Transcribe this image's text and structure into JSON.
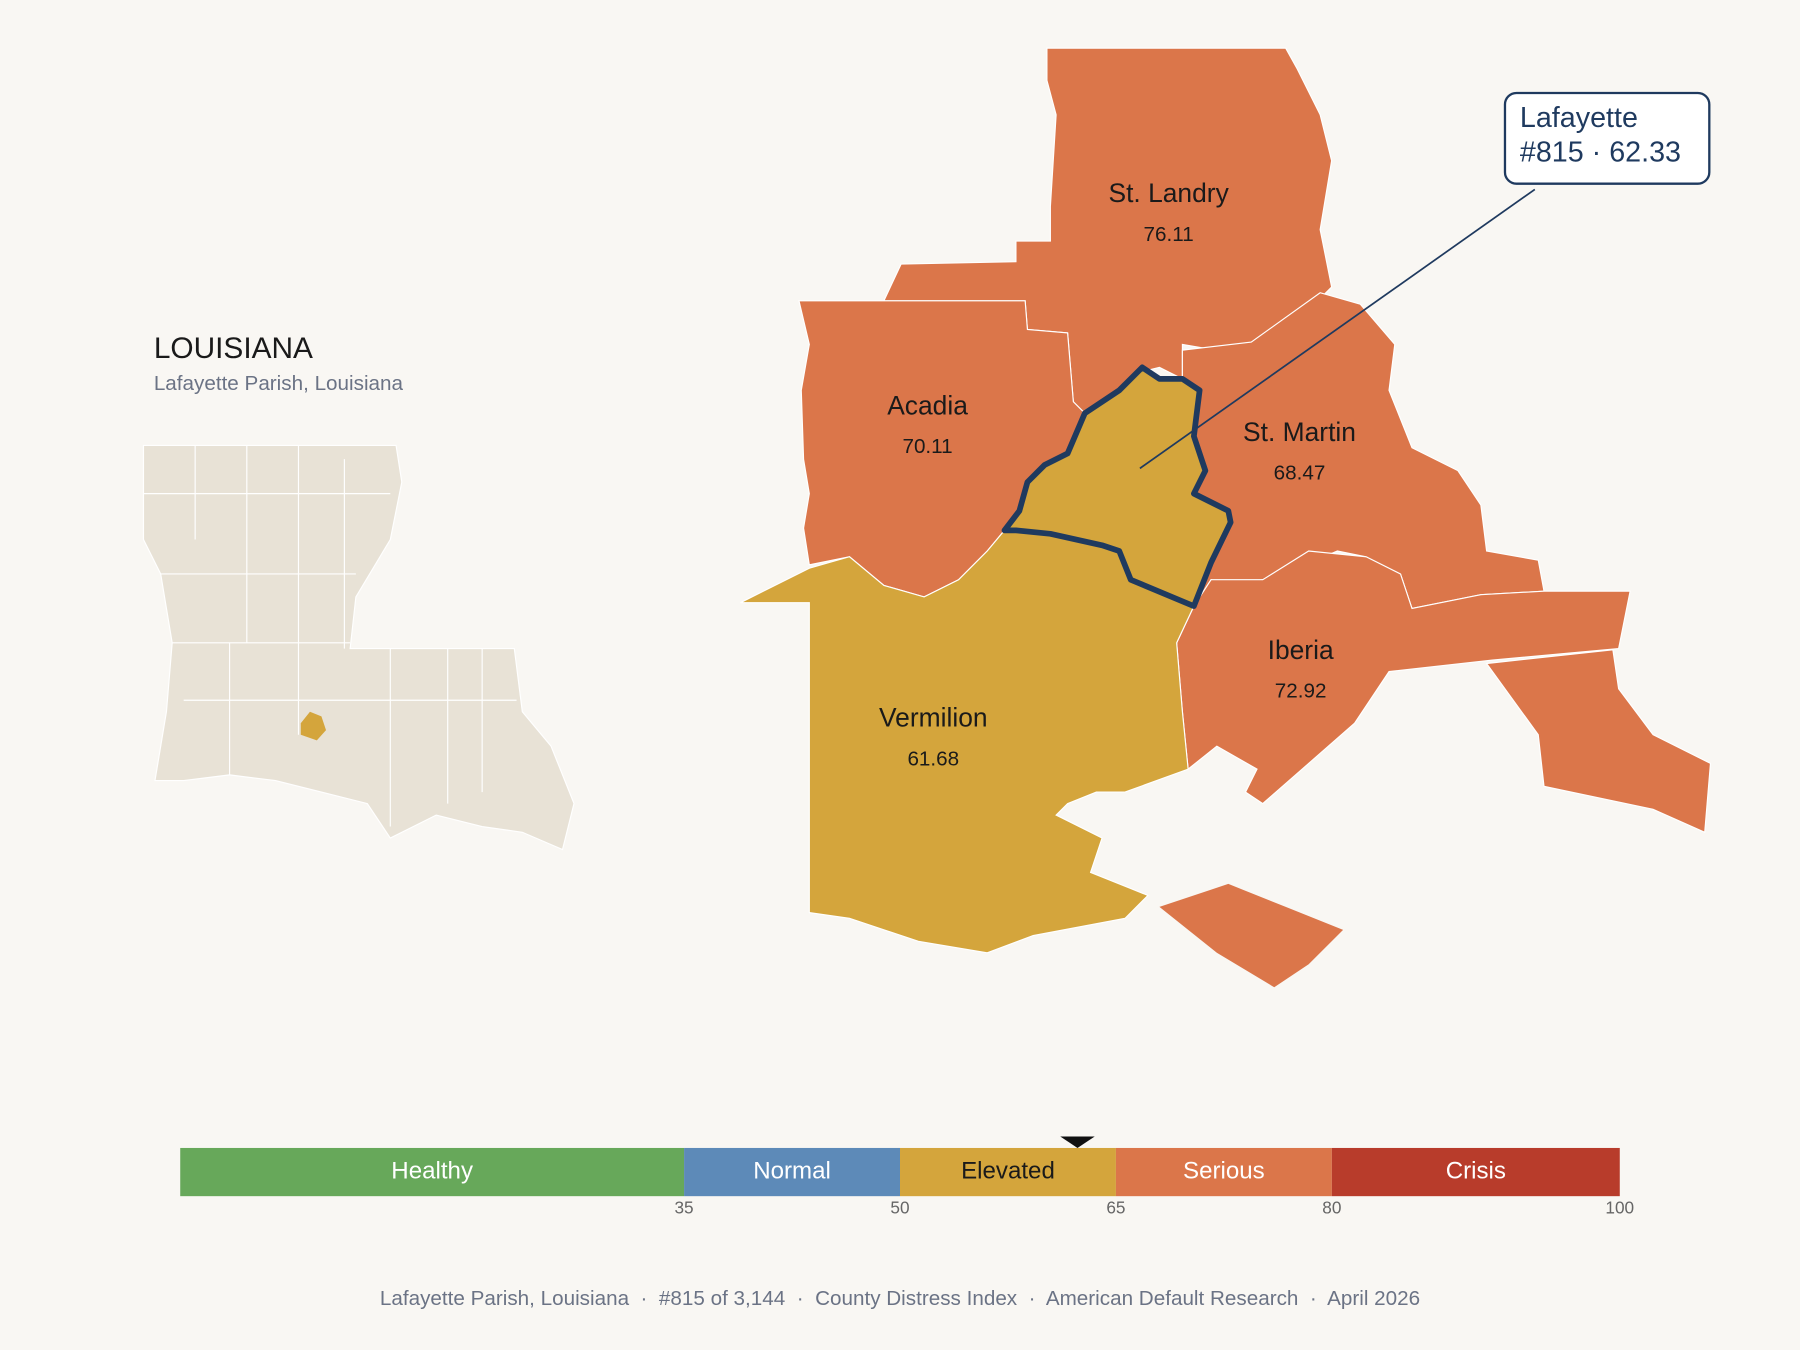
{
  "header": {
    "title": "LOUISIANA",
    "subtitle": "Lafayette Parish, Louisiana"
  },
  "parishes": [
    {
      "name": "St. Landry",
      "value": 76.11
    },
    {
      "name": "Acadia",
      "value": 70.11
    },
    {
      "name": "St. Martin",
      "value": 68.47
    },
    {
      "name": "Iberia",
      "value": 72.92
    },
    {
      "name": "Vermilion",
      "value": 61.68
    }
  ],
  "callout": {
    "name": "Lafayette",
    "detail": "#815 · 62.33"
  },
  "scale": {
    "range": [
      0,
      100
    ],
    "ticks": [
      35,
      50,
      65,
      80,
      100
    ],
    "bands": [
      {
        "label": "Healthy",
        "color": "#67a85a"
      },
      {
        "label": "Normal",
        "color": "#5d8ab8"
      },
      {
        "label": "Elevated",
        "color": "#d4a53c"
      },
      {
        "label": "Serious",
        "color": "#db764a"
      },
      {
        "label": "Crisis",
        "color": "#b83c2b"
      }
    ],
    "marker": 62.33
  },
  "footer": "Lafayette Parish, Louisiana  ·  #815 of 3,144  ·  County Distress Index  ·  American Default Research  ·  April 2026"
}
